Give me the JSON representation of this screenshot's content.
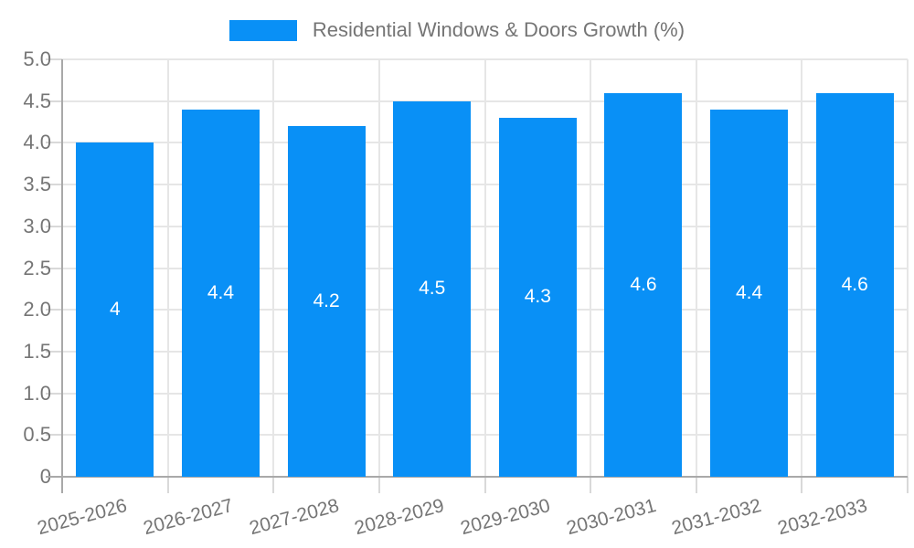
{
  "legend": {
    "label": "Residential Windows & Doors Growth (%)"
  },
  "colors": {
    "bar": "#0990f6",
    "grid": "#e6e6e6",
    "axis": "#a9a9a9",
    "tick": "#d9d9d9",
    "text_muted": "#757575",
    "value_label": "#ffffff",
    "background": "#ffffff"
  },
  "chart_data": {
    "type": "bar",
    "title": "",
    "legend": "Residential Windows & Doors Growth (%)",
    "legend_position": "top-center",
    "xlabel": "",
    "ylabel": "",
    "categories": [
      "2025-2026",
      "2026-2027",
      "2027-2028",
      "2028-2029",
      "2029-2030",
      "2030-2031",
      "2031-2032",
      "2032-2033"
    ],
    "values": [
      4,
      4.4,
      4.2,
      4.5,
      4.3,
      4.6,
      4.4,
      4.6
    ],
    "value_labels": [
      "4",
      "4.4",
      "4.2",
      "4.5",
      "4.3",
      "4.6",
      "4.4",
      "4.6"
    ],
    "ylim": [
      0,
      5
    ],
    "ytick_step": 0.5,
    "ytick_labels": [
      "0",
      "0.5",
      "1.0",
      "1.5",
      "2.0",
      "2.5",
      "3.0",
      "3.5",
      "4.0",
      "4.5",
      "5.0"
    ],
    "grid": true,
    "x_label_rotation_deg": -15
  }
}
